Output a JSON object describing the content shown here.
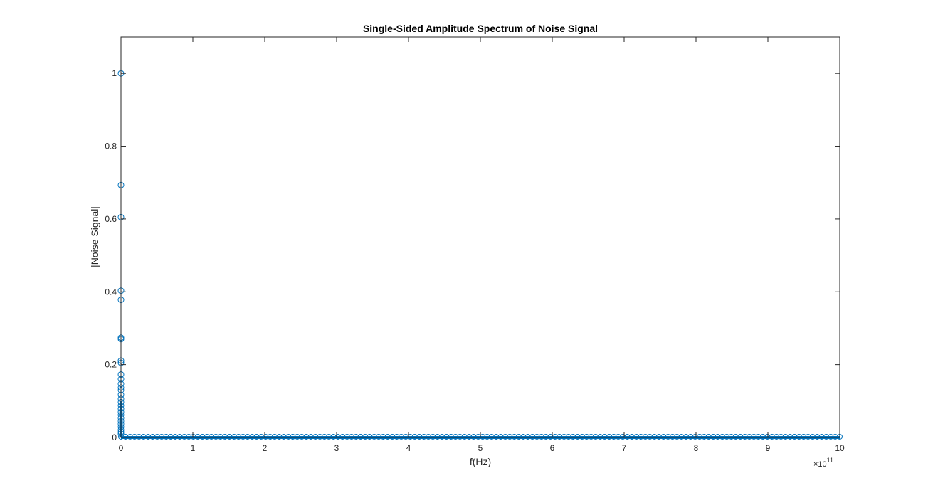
{
  "chart_data": {
    "type": "stem",
    "title": "Single-Sided Amplitude Spectrum of Noise Signal",
    "xlabel": "f(Hz)",
    "ylabel": "|Noise Signal|",
    "x_multiplier_base": "×10",
    "x_multiplier_exp": "11",
    "xlim": [
      0,
      10
    ],
    "ylim": [
      0,
      1.1
    ],
    "x_ticks": [
      "0",
      "1",
      "2",
      "3",
      "4",
      "5",
      "6",
      "7",
      "8",
      "9",
      "10"
    ],
    "y_ticks": [
      "0",
      "0.2",
      "0.4",
      "0.6",
      "0.8",
      "1"
    ],
    "grid": false,
    "series_color": "#0072BD",
    "marker": "circle",
    "x_units_note": "x values in units of 1e11 Hz",
    "points": [
      {
        "x": 0.0,
        "y": 1.0
      },
      {
        "x": 0.0,
        "y": 0.693
      },
      {
        "x": 0.0,
        "y": 0.605
      },
      {
        "x": 0.0,
        "y": 0.403
      },
      {
        "x": 0.0,
        "y": 0.378
      },
      {
        "x": 0.0,
        "y": 0.274
      },
      {
        "x": 0.0,
        "y": 0.27
      },
      {
        "x": 0.0,
        "y": 0.211
      },
      {
        "x": 0.0,
        "y": 0.205
      },
      {
        "x": 0.0,
        "y": 0.173
      },
      {
        "x": 0.0,
        "y": 0.16
      },
      {
        "x": 0.0,
        "y": 0.147
      },
      {
        "x": 0.0,
        "y": 0.137
      },
      {
        "x": 0.0,
        "y": 0.13
      },
      {
        "x": 0.0,
        "y": 0.117
      },
      {
        "x": 0.0,
        "y": 0.106
      },
      {
        "x": 0.0,
        "y": 0.097
      },
      {
        "x": 0.0,
        "y": 0.088
      },
      {
        "x": 0.0,
        "y": 0.079
      },
      {
        "x": 0.0,
        "y": 0.07
      },
      {
        "x": 0.0,
        "y": 0.062
      },
      {
        "x": 0.0,
        "y": 0.053
      },
      {
        "x": 0.0,
        "y": 0.045
      },
      {
        "x": 0.0,
        "y": 0.037
      },
      {
        "x": 0.0,
        "y": 0.029
      },
      {
        "x": 0.0,
        "y": 0.021
      },
      {
        "x": 0.0,
        "y": 0.015
      },
      {
        "x": 0.0,
        "y": 0.01
      }
    ],
    "floor_series": {
      "description": "dense markers near zero amplitude across the full frequency range",
      "x_start": 0.0,
      "x_end": 10.0,
      "count": 160,
      "y": 0.002
    }
  }
}
